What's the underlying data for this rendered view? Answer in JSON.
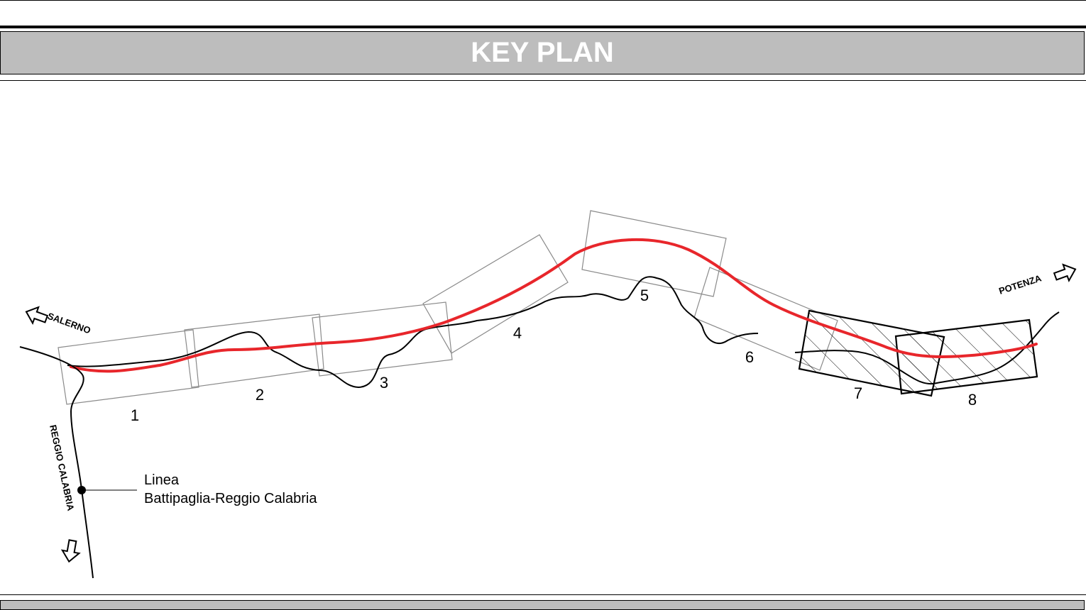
{
  "header": {
    "title": "KEY PLAN"
  },
  "sheets": [
    {
      "label": "1"
    },
    {
      "label": "2"
    },
    {
      "label": "3"
    },
    {
      "label": "4"
    },
    {
      "label": "5"
    },
    {
      "label": "6"
    },
    {
      "label": "7"
    },
    {
      "label": "8"
    }
  ],
  "directions": {
    "salerno": "SALERNO",
    "potenza": "POTENZA",
    "reggio": "REGGIO CALABRIA"
  },
  "legend": {
    "line1": "Linea",
    "line2": "Battipaglia-Reggio Calabria"
  },
  "colors": {
    "route": "#e8262b",
    "river": "#000000",
    "sheet_outline": "#8a8a8a",
    "title_band": "#bdbdbd",
    "title_text": "#ffffff"
  }
}
